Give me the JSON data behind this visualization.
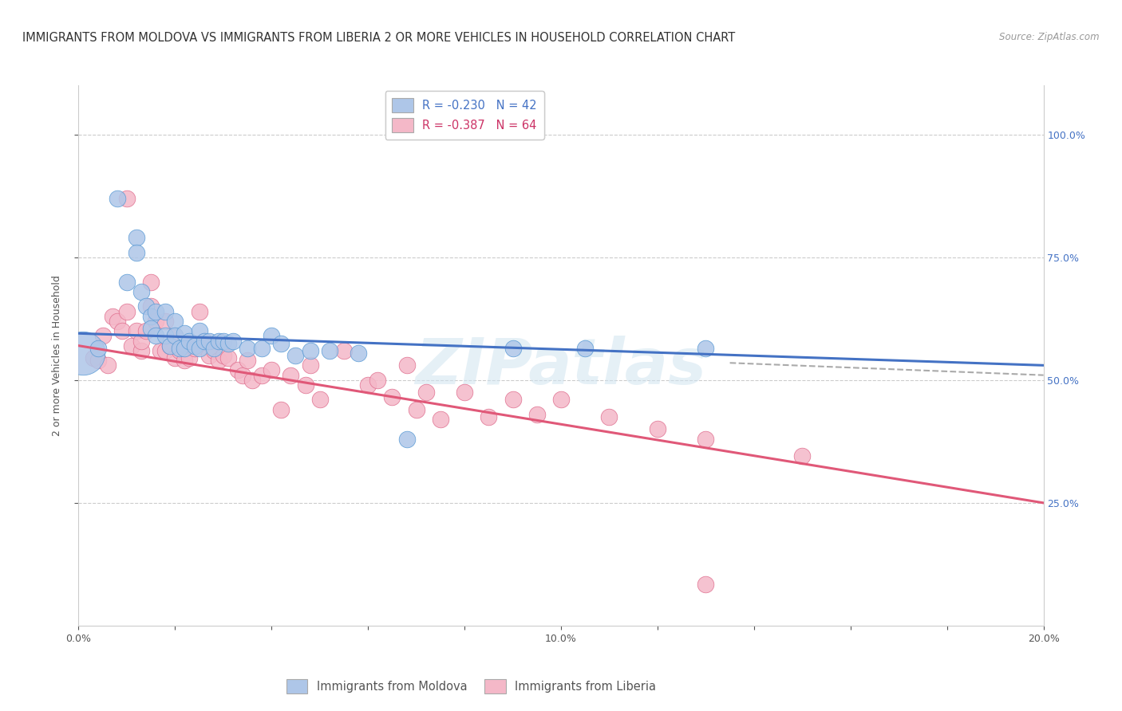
{
  "title": "IMMIGRANTS FROM MOLDOVA VS IMMIGRANTS FROM LIBERIA 2 OR MORE VEHICLES IN HOUSEHOLD CORRELATION CHART",
  "source": "Source: ZipAtlas.com",
  "ylabel": "2 or more Vehicles in Household",
  "xlim": [
    0.0,
    0.2
  ],
  "ylim": [
    0.0,
    1.1
  ],
  "ytick_vals": [
    0.25,
    0.5,
    0.75,
    1.0
  ],
  "xtick_labels": [
    "0.0%",
    "",
    "",
    "",
    "",
    "10.0%",
    "",
    "",
    "",
    "",
    "20.0%"
  ],
  "xtick_vals": [
    0.0,
    0.02,
    0.04,
    0.06,
    0.08,
    0.1,
    0.12,
    0.14,
    0.16,
    0.18,
    0.2
  ],
  "right_ytick_vals": [
    0.25,
    0.5,
    0.75,
    1.0
  ],
  "right_ytick_labels": [
    "25.0%",
    "50.0%",
    "75.0%",
    "100.0%"
  ],
  "moldova_R": -0.23,
  "moldova_N": 42,
  "liberia_R": -0.387,
  "liberia_N": 64,
  "moldova_color": "#aec6e8",
  "liberia_color": "#f4b8c8",
  "moldova_edge_color": "#5b9bd5",
  "liberia_edge_color": "#e07090",
  "moldova_line_color": "#4472c4",
  "liberia_line_color": "#e05878",
  "background_color": "#ffffff",
  "moldova_scatter_x": [
    0.004,
    0.008,
    0.01,
    0.012,
    0.012,
    0.013,
    0.014,
    0.015,
    0.015,
    0.016,
    0.016,
    0.018,
    0.018,
    0.019,
    0.02,
    0.02,
    0.021,
    0.022,
    0.022,
    0.023,
    0.024,
    0.025,
    0.025,
    0.026,
    0.027,
    0.028,
    0.029,
    0.03,
    0.031,
    0.032,
    0.035,
    0.038,
    0.04,
    0.042,
    0.045,
    0.048,
    0.052,
    0.058,
    0.068,
    0.09,
    0.105,
    0.13
  ],
  "moldova_scatter_y": [
    0.565,
    0.87,
    0.7,
    0.79,
    0.76,
    0.68,
    0.65,
    0.63,
    0.605,
    0.64,
    0.59,
    0.64,
    0.59,
    0.57,
    0.62,
    0.59,
    0.565,
    0.595,
    0.565,
    0.58,
    0.57,
    0.6,
    0.565,
    0.58,
    0.58,
    0.565,
    0.58,
    0.58,
    0.575,
    0.58,
    0.565,
    0.565,
    0.59,
    0.575,
    0.55,
    0.56,
    0.56,
    0.555,
    0.38,
    0.565,
    0.565,
    0.565
  ],
  "liberia_scatter_x": [
    0.003,
    0.004,
    0.005,
    0.006,
    0.007,
    0.008,
    0.009,
    0.01,
    0.01,
    0.011,
    0.012,
    0.013,
    0.013,
    0.014,
    0.015,
    0.015,
    0.016,
    0.017,
    0.018,
    0.018,
    0.019,
    0.02,
    0.02,
    0.021,
    0.022,
    0.022,
    0.023,
    0.024,
    0.025,
    0.026,
    0.027,
    0.028,
    0.029,
    0.03,
    0.031,
    0.033,
    0.034,
    0.035,
    0.036,
    0.038,
    0.04,
    0.042,
    0.044,
    0.047,
    0.048,
    0.05,
    0.055,
    0.06,
    0.062,
    0.065,
    0.068,
    0.07,
    0.072,
    0.075,
    0.08,
    0.085,
    0.09,
    0.095,
    0.1,
    0.11,
    0.12,
    0.13,
    0.15,
    0.13
  ],
  "liberia_scatter_y": [
    0.545,
    0.54,
    0.59,
    0.53,
    0.63,
    0.62,
    0.6,
    0.87,
    0.64,
    0.57,
    0.6,
    0.56,
    0.58,
    0.6,
    0.7,
    0.65,
    0.62,
    0.56,
    0.62,
    0.56,
    0.57,
    0.59,
    0.545,
    0.56,
    0.575,
    0.54,
    0.545,
    0.565,
    0.64,
    0.58,
    0.55,
    0.56,
    0.54,
    0.55,
    0.545,
    0.52,
    0.51,
    0.54,
    0.5,
    0.51,
    0.52,
    0.44,
    0.51,
    0.49,
    0.53,
    0.46,
    0.56,
    0.49,
    0.5,
    0.465,
    0.53,
    0.44,
    0.475,
    0.42,
    0.475,
    0.425,
    0.46,
    0.43,
    0.46,
    0.425,
    0.4,
    0.38,
    0.345,
    0.085
  ],
  "moldova_large_x": [
    0.001
  ],
  "moldova_large_y": [
    0.555
  ],
  "moldova_line_x0": 0.0,
  "moldova_line_x1": 0.2,
  "moldova_line_y0": 0.595,
  "moldova_line_y1": 0.53,
  "liberia_line_x0": 0.0,
  "liberia_line_x1": 0.2,
  "liberia_line_y0": 0.57,
  "liberia_line_y1": 0.25,
  "dashed_line_x0": 0.135,
  "dashed_line_x1": 0.2,
  "dashed_line_y0": 0.535,
  "dashed_line_y1": 0.51,
  "watermark": "ZIPatlas",
  "title_fontsize": 10.5,
  "axis_label_fontsize": 9,
  "tick_fontsize": 9,
  "legend_fontsize": 10.5,
  "dot_size": 220
}
